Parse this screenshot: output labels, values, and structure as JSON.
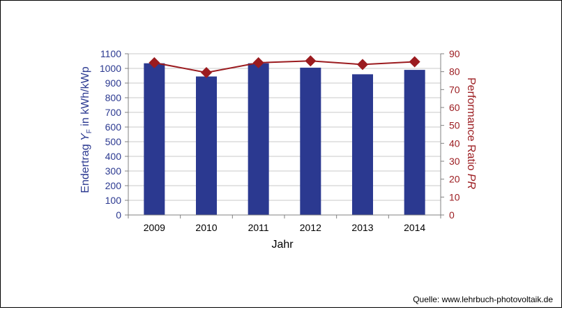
{
  "chart_data": {
    "type": "bar+line",
    "categories": [
      "2009",
      "2010",
      "2011",
      "2012",
      "2013",
      "2014"
    ],
    "xlabel": "Jahr",
    "series": [
      {
        "type": "bar",
        "axis": "left",
        "values": [
          1035,
          945,
          1035,
          1005,
          960,
          990
        ]
      },
      {
        "type": "line",
        "axis": "right",
        "values": [
          85,
          79.5,
          85,
          86,
          84,
          85.5
        ]
      }
    ],
    "y_left": {
      "label_parts": [
        "Endertrag ",
        "Y",
        "F",
        " in kWh/kWp"
      ],
      "lim": [
        0,
        1100
      ],
      "ticks": [
        0,
        100,
        200,
        300,
        400,
        500,
        600,
        700,
        800,
        900,
        1000,
        1100
      ]
    },
    "y_right": {
      "label_parts": [
        "Performance Ratio ",
        "PR"
      ],
      "lim": [
        0,
        90
      ],
      "ticks": [
        0,
        10,
        20,
        30,
        40,
        50,
        60,
        70,
        80,
        90
      ]
    },
    "grid": true,
    "legend": false,
    "colors": {
      "bars": "#2b3990",
      "line": "#9b1b1f",
      "left_axis_text": "#2b3990",
      "right_axis_text": "#9b1b1f"
    }
  },
  "source_text": "Quelle: www.lehrbuch-photovoltaik.de"
}
